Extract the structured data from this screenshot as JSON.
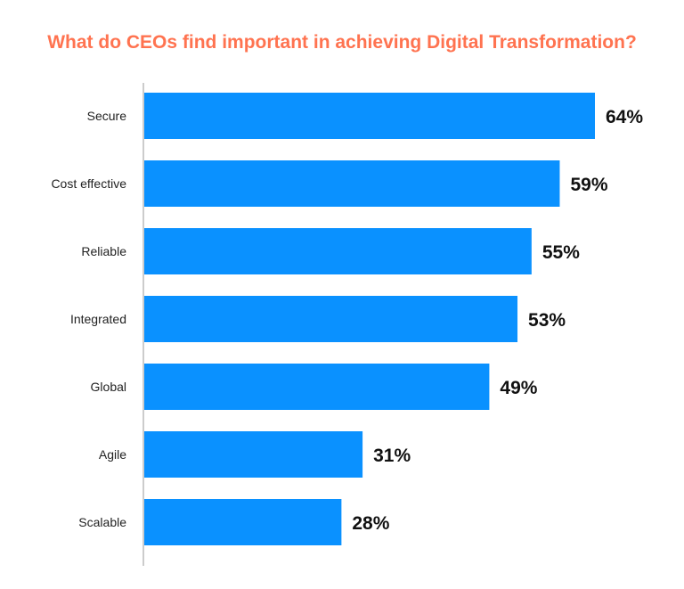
{
  "chart_data": {
    "type": "bar",
    "orientation": "horizontal",
    "title": "What do CEOs find important in achieving Digital Transformation?",
    "xlabel": "",
    "ylabel": "",
    "categories": [
      "Secure",
      "Cost effective",
      "Reliable",
      "Integrated",
      "Global",
      "Agile",
      "Scalable"
    ],
    "values": [
      64,
      59,
      55,
      53,
      49,
      31,
      28
    ],
    "value_labels": [
      "64%",
      "59%",
      "55%",
      "53%",
      "49%",
      "31%",
      "28%"
    ],
    "xlim": [
      0,
      64
    ],
    "grid": false,
    "colors": {
      "bar": "#0a91ff",
      "title": "#ff7350",
      "axis": "#999999"
    }
  }
}
